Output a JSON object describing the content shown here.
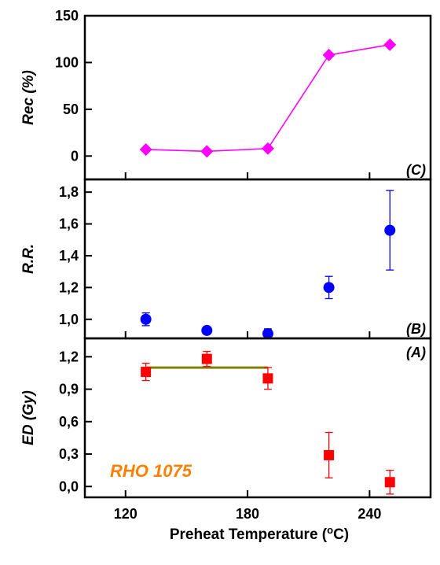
{
  "chart_data": {
    "type": "scatter",
    "sample_label": "RHO 1075",
    "xlabel_main": "Preheat Temperature (",
    "xlabel_sup": "o",
    "xlabel_end": "C)",
    "xlim": [
      100,
      270
    ],
    "xticks": [
      120,
      180,
      240
    ],
    "panels": [
      {
        "tag": "(C)",
        "ylabel": "Rec (%)",
        "ylim": [
          -25,
          150
        ],
        "yticks": [
          0,
          50,
          100,
          150
        ],
        "ytick_labels": [
          "0",
          "50",
          "100",
          "150"
        ],
        "series": [
          {
            "marker": "diamond",
            "line": true,
            "color": "#ff00ff",
            "x": [
              130,
              160,
              190,
              220,
              250
            ],
            "y": [
              7,
              5,
              8,
              108,
              119
            ]
          }
        ]
      },
      {
        "tag": "(B)",
        "ylabel": "R.R.",
        "ylim": [
          0.88,
          1.88
        ],
        "yticks": [
          1.0,
          1.2,
          1.4,
          1.6,
          1.8
        ],
        "ytick_labels": [
          "1,0",
          "1,2",
          "1,4",
          "1,6",
          "1,8"
        ],
        "series": [
          {
            "marker": "circle",
            "line": false,
            "color": "#0000ff",
            "x": [
              130,
              160,
              190,
              220,
              250
            ],
            "y": [
              1.0,
              0.93,
              0.91,
              1.2,
              1.56
            ],
            "yerr": [
              0.04,
              0.02,
              0.03,
              0.07,
              0.25
            ]
          }
        ]
      },
      {
        "tag": "(A)",
        "ylabel": "ED (Gy)",
        "ylim": [
          -0.1,
          1.37
        ],
        "yticks": [
          0.0,
          0.3,
          0.6,
          0.9,
          1.2
        ],
        "ytick_labels": [
          "0,0",
          "0,3",
          "0,6",
          "0,9",
          "1,2"
        ],
        "series": [
          {
            "marker": "square",
            "line": false,
            "color": "#ff0000",
            "x": [
              130,
              160,
              190,
              220,
              250
            ],
            "y": [
              1.06,
              1.18,
              1.0,
              0.29,
              0.04
            ],
            "yerr": [
              0.08,
              0.07,
              0.1,
              0.21,
              0.11
            ]
          }
        ],
        "hline": {
          "y": 1.1,
          "x_from": 130,
          "x_to": 190,
          "color": "#808000"
        }
      }
    ]
  },
  "colors": {
    "sample_label": "#ff8000",
    "axes": "#000000"
  }
}
